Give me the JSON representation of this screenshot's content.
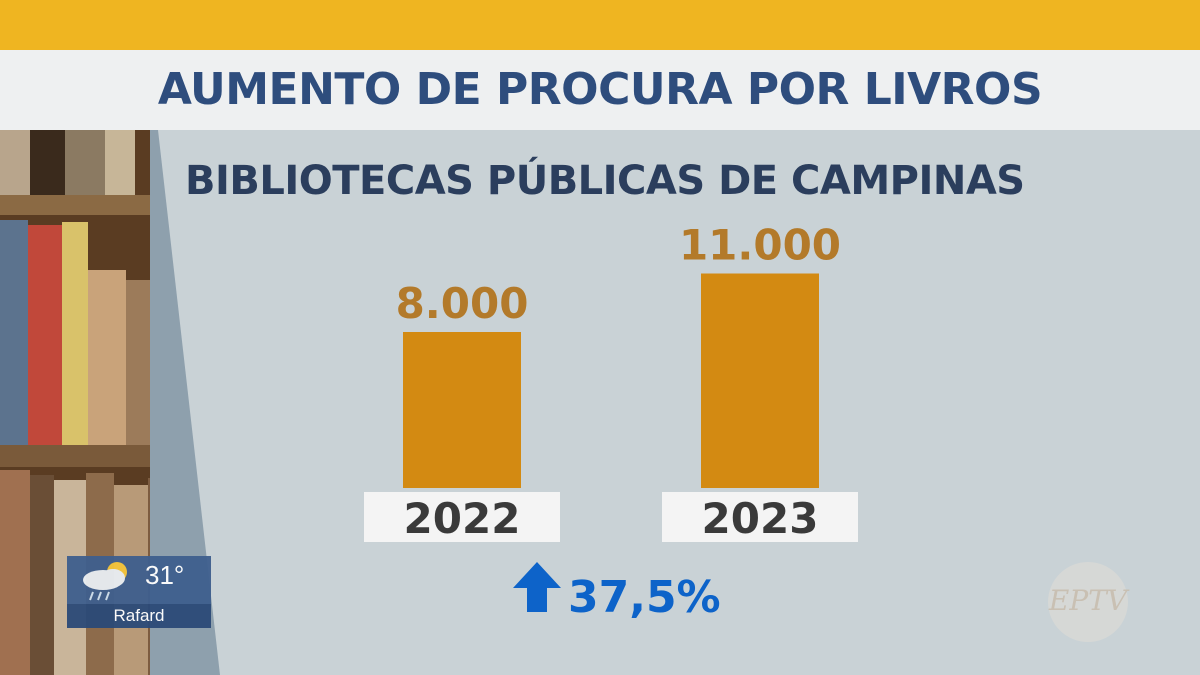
{
  "header": {
    "title": "AUMENTO DE PROCURA POR LIVROS"
  },
  "chart_data": {
    "type": "bar",
    "title": "BIBLIOTECAS PÚBLICAS DE CAMPINAS",
    "categories": [
      "2022",
      "2023"
    ],
    "values": [
      8000,
      11000
    ],
    "value_labels": [
      "8.000",
      "11.000"
    ],
    "annotation": "37,5%",
    "bar_color": "#d38a12",
    "label_color": "#b37a2a"
  },
  "weather": {
    "temperature": "31°",
    "city": "Rafard",
    "icon": "rain-cloud-sun-icon"
  },
  "logo": {
    "text": "EPTV"
  },
  "colors": {
    "accent": "#efb521",
    "title": "#2e4d7d",
    "arrow": "#0d63c9"
  }
}
